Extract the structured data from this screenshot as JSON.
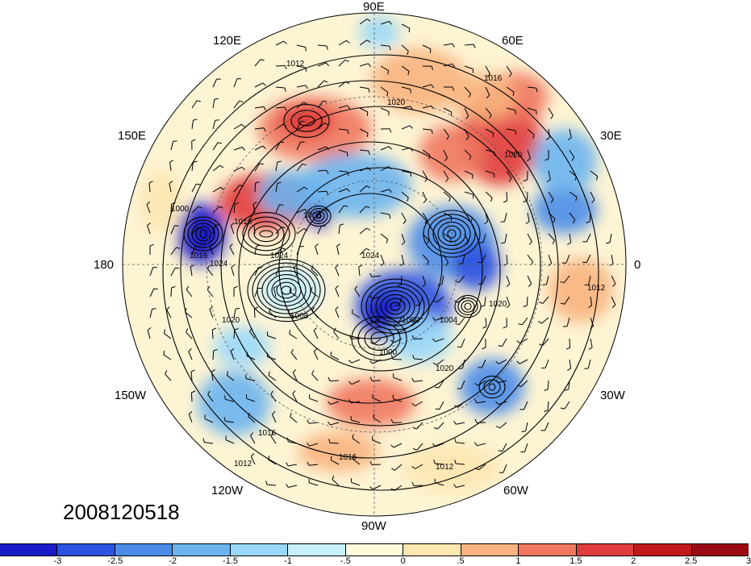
{
  "map": {
    "projection": "north-polar-stereographic",
    "longitude_labels": [
      "90E",
      "120E",
      "60E",
      "150E",
      "30E",
      "180",
      "0",
      "150W",
      "30W",
      "120W",
      "60W",
      "90W"
    ],
    "contour_labels": [
      "1012",
      "1016",
      "1020",
      "1024",
      "1008",
      "1004",
      "1000"
    ]
  },
  "timestamp": "2008120518",
  "colorbar": {
    "colors": [
      "#1a1ac8",
      "#2c52e0",
      "#4a8ce8",
      "#6cb4f0",
      "#9ad8f8",
      "#c8f0fc",
      "#fffadc",
      "#fde6b0",
      "#f8b480",
      "#f07860",
      "#e03c3c",
      "#c01818",
      "#9c0a14"
    ],
    "tick_labels": [
      "-3",
      "-2.5",
      "-2",
      "-1.5",
      "-1",
      "-.5",
      "0",
      ".5",
      "1",
      "1.5",
      "2",
      "2.5",
      "3"
    ]
  }
}
